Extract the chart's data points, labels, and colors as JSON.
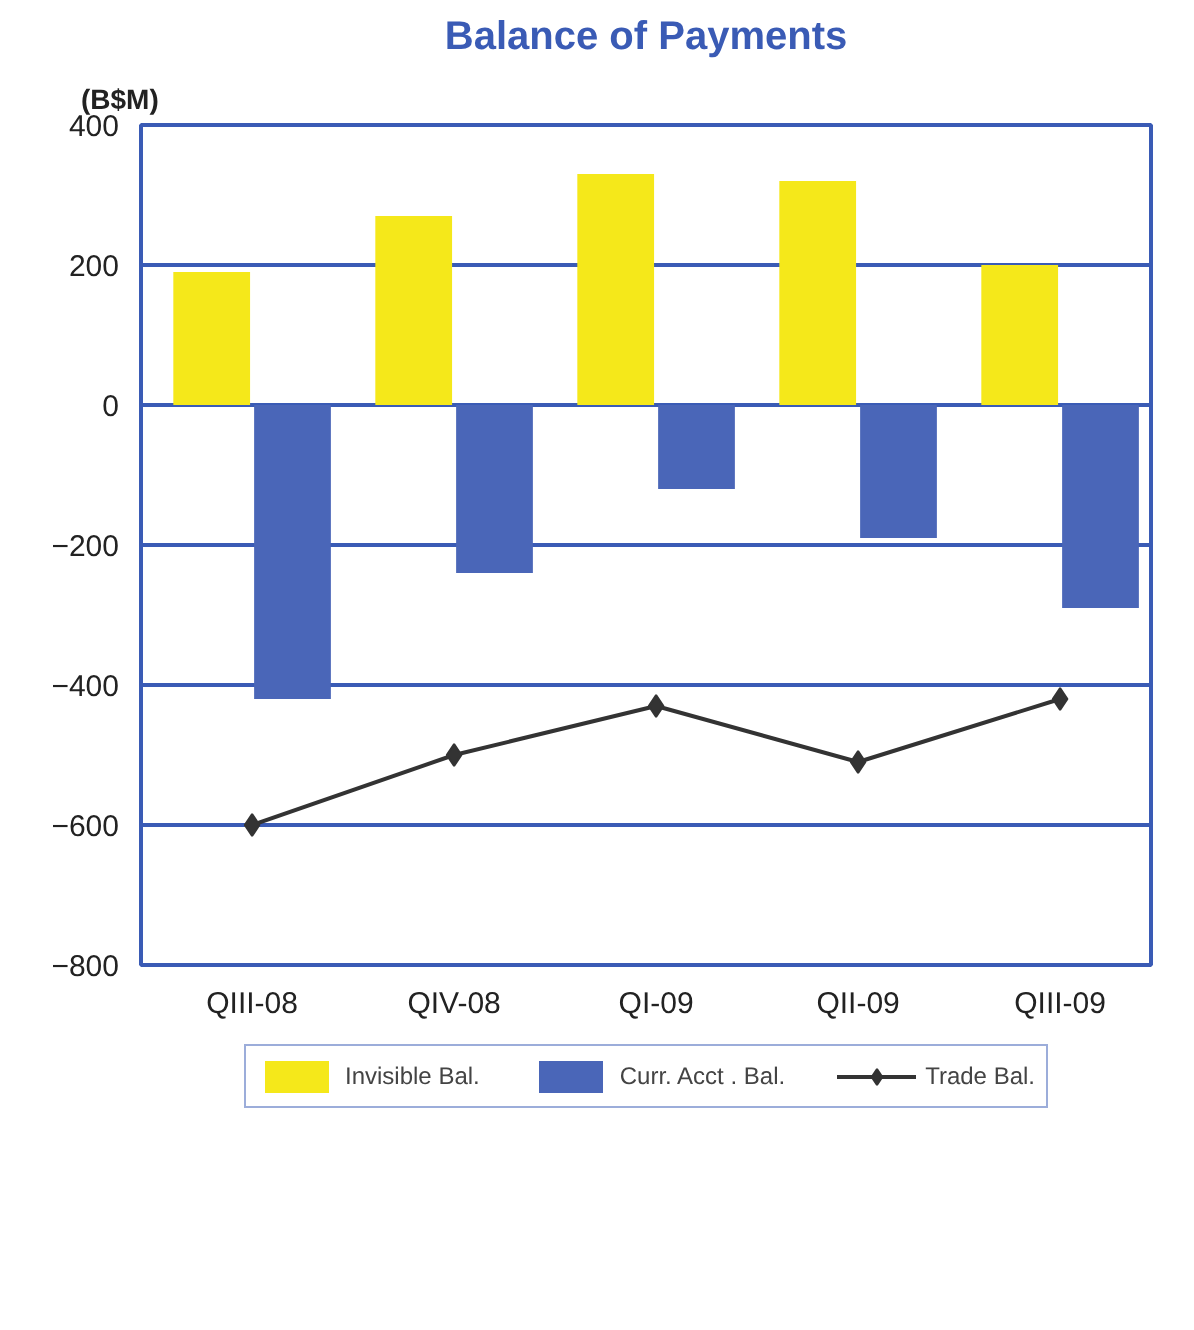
{
  "chart_data": {
    "type": "bar",
    "title": "Balance of Payments",
    "ylabel": "(B$M)",
    "categories": [
      "QIII-08",
      "QIV-08",
      "QI-09",
      "QII-09",
      "QIII-09"
    ],
    "series": [
      {
        "name": "Invisible Bal.",
        "color": "#f5e81a",
        "values": [
          190,
          270,
          330,
          320,
          200
        ]
      },
      {
        "name": "Curr. Acct . Bal.",
        "color": "#4a66b8",
        "values": [
          -420,
          -240,
          -120,
          -190,
          -290
        ]
      },
      {
        "name": "Trade Bal.",
        "type": "line",
        "color": "#333333",
        "marker": "diamond",
        "values": [
          -600,
          -500,
          -430,
          -510,
          -420
        ]
      }
    ],
    "ylim": [
      -800,
      400
    ],
    "yticks": [
      -800,
      -600,
      -400,
      -200,
      0,
      200,
      400
    ],
    "grid": "y",
    "legend": "bottom"
  }
}
